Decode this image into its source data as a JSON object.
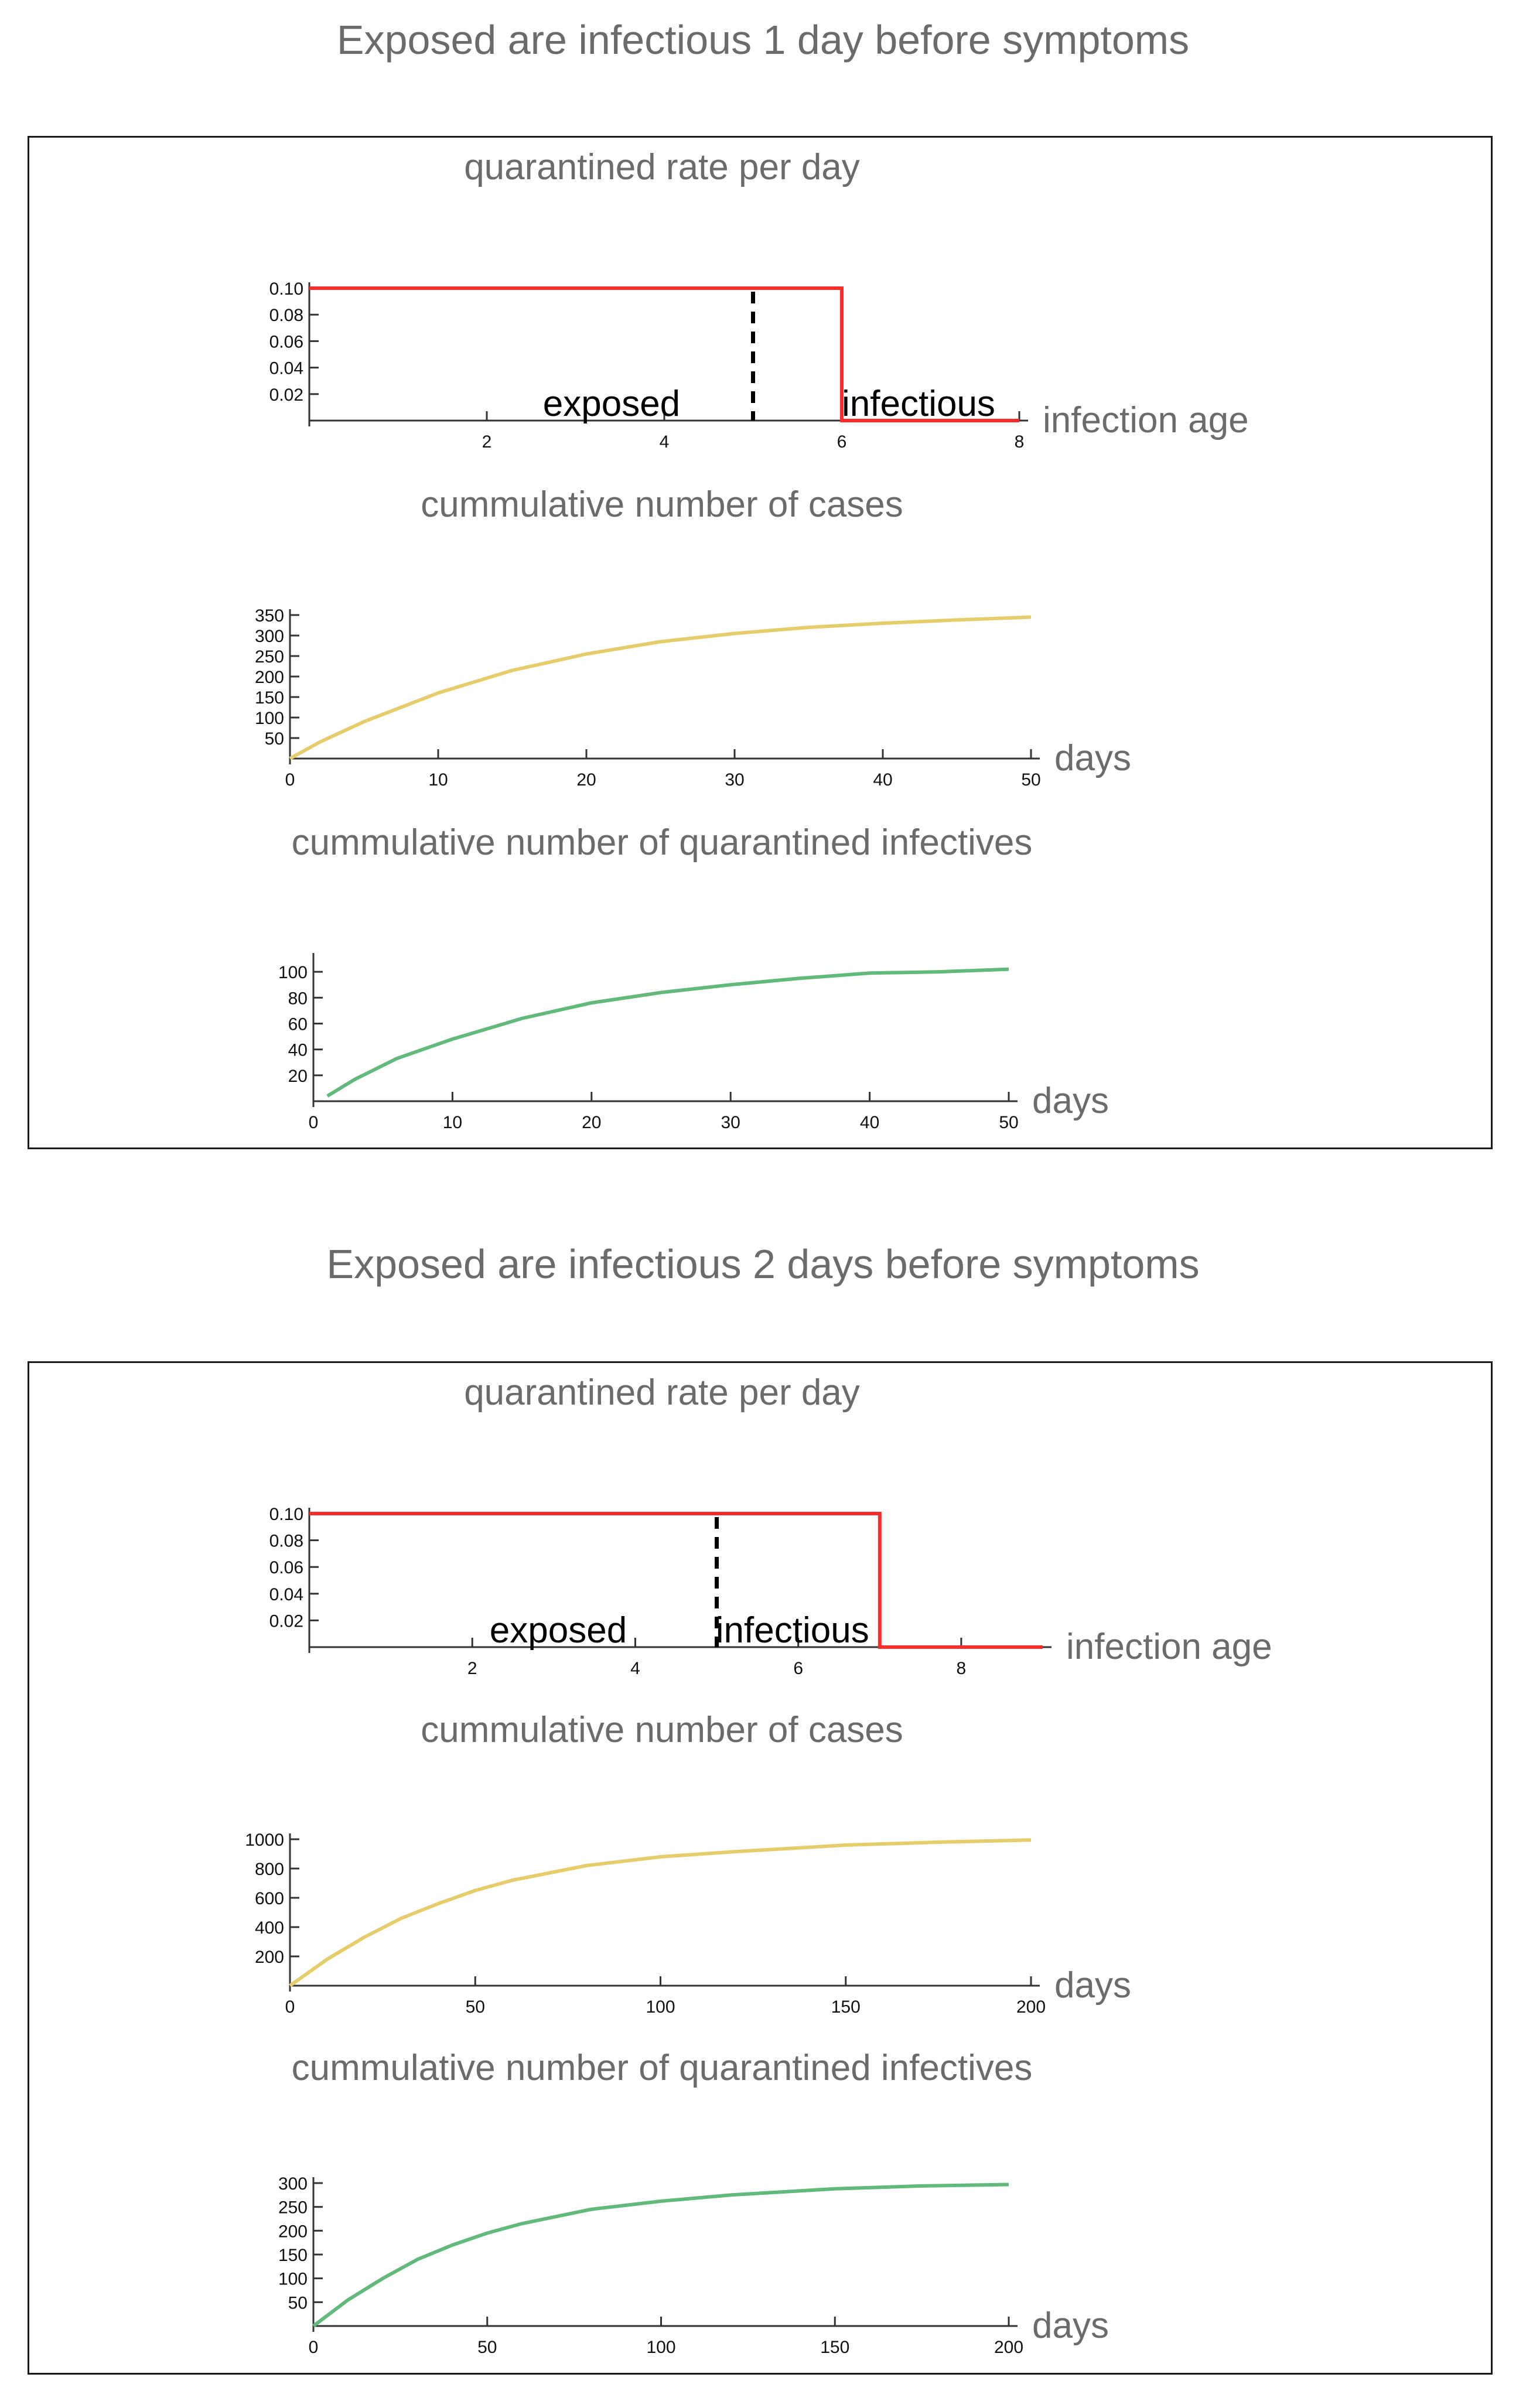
{
  "figures": [
    {
      "title": "Exposed are infectious 1 day before symptoms",
      "charts": [
        {
          "title": "quarantined rate per day",
          "xlabel": "infection age",
          "xticks": [
            "2",
            "4",
            "6",
            "8"
          ],
          "yticks": [
            "0.10",
            "0.08",
            "0.06",
            "0.04",
            "0.02"
          ],
          "ann_exposed": "exposed",
          "ann_infectious": "infectious"
        },
        {
          "title": "cummulative number of cases",
          "xlabel": "days",
          "xticks": [
            "0",
            "10",
            "20",
            "30",
            "40",
            "50"
          ],
          "yticks": [
            "350",
            "300",
            "250",
            "200",
            "150",
            "100",
            "50"
          ]
        },
        {
          "title": "cummulative number of quarantined infectives",
          "xlabel": "days",
          "xticks": [
            "0",
            "10",
            "20",
            "30",
            "40",
            "50"
          ],
          "yticks": [
            "100",
            "80",
            "60",
            "40",
            "20"
          ]
        }
      ]
    },
    {
      "title": "Exposed are infectious 2 days before symptoms",
      "charts": [
        {
          "title": "quarantined rate per day",
          "xlabel": "infection age",
          "xticks": [
            "2",
            "4",
            "6",
            "8"
          ],
          "yticks": [
            "0.10",
            "0.08",
            "0.06",
            "0.04",
            "0.02"
          ],
          "ann_exposed": "exposed",
          "ann_infectious": "infectious"
        },
        {
          "title": "cummulative number of cases",
          "xlabel": "days",
          "xticks": [
            "0",
            "50",
            "100",
            "150",
            "200"
          ],
          "yticks": [
            "1000",
            "800",
            "600",
            "400",
            "200"
          ]
        },
        {
          "title": "cummulative number of quarantined infectives",
          "xlabel": "days",
          "xticks": [
            "0",
            "50",
            "100",
            "150",
            "200"
          ],
          "yticks": [
            "300",
            "250",
            "200",
            "150",
            "100",
            "50"
          ]
        }
      ]
    }
  ],
  "colors": {
    "rate": "#ff2a2a",
    "cases": "#e6cd6c",
    "quarantined": "#62b97c",
    "axis": "#333333",
    "divider": "#000000",
    "title": "#6b6b6b"
  },
  "chart_data": [
    {
      "type": "line",
      "title": "quarantined rate per day",
      "xlabel": "infection age",
      "ylabel": "",
      "xlim": [
        0,
        8
      ],
      "ylim": [
        0,
        0.1
      ],
      "step_series": {
        "x": [
          0,
          6,
          6,
          8
        ],
        "y": [
          0.1,
          0.1,
          0,
          0
        ]
      },
      "dashed_marker_x": 5,
      "annotations": [
        "exposed",
        "infectious"
      ]
    },
    {
      "type": "line",
      "title": "cummulative number of cases",
      "xlabel": "days",
      "ylabel": "",
      "xlim": [
        0,
        50
      ],
      "ylim": [
        0,
        350
      ],
      "x": [
        0,
        2,
        5,
        10,
        15,
        20,
        25,
        30,
        35,
        40,
        45,
        50
      ],
      "y": [
        0,
        40,
        90,
        160,
        215,
        255,
        285,
        305,
        320,
        330,
        338,
        345
      ]
    },
    {
      "type": "line",
      "title": "cummulative number of quarantined infectives",
      "xlabel": "days",
      "ylabel": "",
      "xlim": [
        0,
        50
      ],
      "ylim": [
        0,
        110
      ],
      "x": [
        1,
        3,
        6,
        10,
        15,
        20,
        25,
        30,
        35,
        40,
        45,
        50
      ],
      "y": [
        4,
        17,
        33,
        48,
        64,
        76,
        84,
        90,
        95,
        99,
        100,
        102
      ]
    },
    {
      "type": "line",
      "title": "quarantined rate per day",
      "xlabel": "infection age",
      "ylabel": "",
      "xlim": [
        0,
        9
      ],
      "ylim": [
        0,
        0.1
      ],
      "step_series": {
        "x": [
          0,
          7,
          7,
          9
        ],
        "y": [
          0.1,
          0.1,
          0,
          0
        ]
      },
      "dashed_marker_x": 5,
      "annotations": [
        "exposed",
        "infectious"
      ]
    },
    {
      "type": "line",
      "title": "cummulative number of cases",
      "xlabel": "days",
      "ylabel": "",
      "xlim": [
        0,
        200
      ],
      "ylim": [
        0,
        1000
      ],
      "x": [
        0,
        10,
        20,
        30,
        40,
        50,
        60,
        80,
        100,
        120,
        150,
        175,
        200
      ],
      "y": [
        0,
        180,
        330,
        460,
        560,
        650,
        720,
        820,
        880,
        915,
        960,
        980,
        995
      ]
    },
    {
      "type": "line",
      "title": "cummulative number of quarantined infectives",
      "xlabel": "days",
      "ylabel": "",
      "xlim": [
        0,
        200
      ],
      "ylim": [
        0,
        300
      ],
      "x": [
        0,
        10,
        20,
        30,
        40,
        50,
        60,
        80,
        100,
        120,
        150,
        175,
        200
      ],
      "y": [
        0,
        55,
        100,
        140,
        170,
        195,
        215,
        245,
        262,
        275,
        288,
        294,
        297
      ]
    }
  ]
}
